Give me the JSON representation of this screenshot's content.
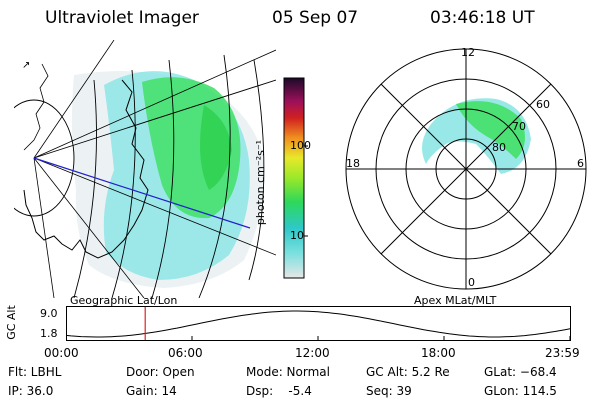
{
  "header": {
    "instrument": "Ultraviolet Imager",
    "date": "05 Sep 07",
    "time": "03:46:18 UT"
  },
  "colorbar": {
    "label": "photon cm⁻²s⁻¹",
    "ticks": [
      "100",
      "10"
    ]
  },
  "left_panel": {
    "caption": "Geographic Lat/Lon"
  },
  "right_panel": {
    "caption": "Apex MLat/MLT",
    "mlt_labels": [
      "12",
      "18",
      "6",
      "0"
    ],
    "lat_labels": [
      "80",
      "70",
      "60"
    ]
  },
  "timeline": {
    "ylabel": "GC Alt",
    "y_ticks": [
      "9.0",
      "1.8"
    ],
    "x_ticks": [
      "00:00",
      "06:00",
      "12:00",
      "18:00",
      "23:59"
    ],
    "current_time_hours": 3.77
  },
  "status": {
    "flt": "Flt: LBHL",
    "ip": "IP: 36.0",
    "door": "Door: Open",
    "gain": "Gain: 14",
    "mode": "Mode: Normal",
    "dsp": "Dsp:    -5.4",
    "gc_alt": "GC Alt: 5.2 Re",
    "seq": "Seq: 39",
    "glat": "GLat: −68.4",
    "glon": "GLon: 114.5"
  }
}
